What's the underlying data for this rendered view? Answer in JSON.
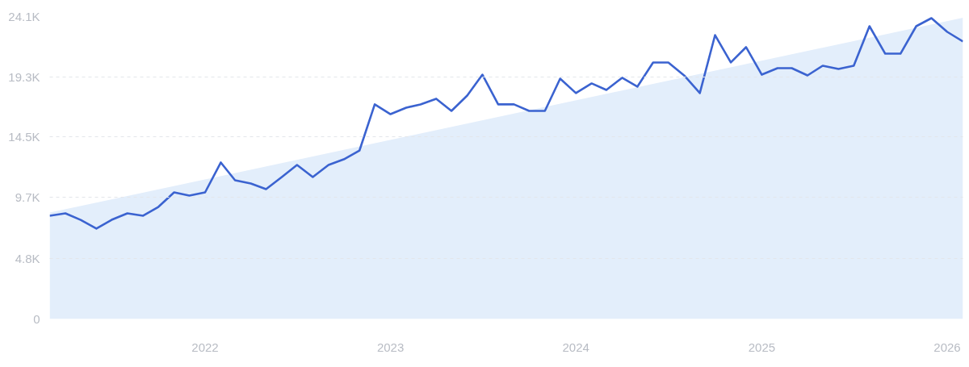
{
  "chart_data": {
    "type": "line",
    "xlim": [
      "2021-03",
      "2026-02"
    ],
    "xticks": [
      "2022",
      "2023",
      "2024",
      "2025",
      "2026"
    ],
    "ylim": [
      0,
      24100
    ],
    "yticks": [
      0,
      {
        "value": 4800,
        "label": "4.8K"
      },
      {
        "value": 9700,
        "label": "9.7K"
      },
      {
        "value": 14500,
        "label": "14.5K"
      },
      {
        "value": 19300,
        "label": "19.3K"
      },
      {
        "value": 24100,
        "label": "24.1K"
      }
    ],
    "grid": "y",
    "line_style": "solid",
    "series": [
      {
        "type": "area",
        "color": "#e3eefb",
        "x": [
          "2021-03",
          "2026-02"
        ],
        "values": [
          8480,
          24000
        ]
      },
      {
        "color": "#3b63d0",
        "x": [
          "2021-03",
          "2021-04",
          "2021-05",
          "2021-06",
          "2021-07",
          "2021-08",
          "2021-09",
          "2021-10",
          "2021-11",
          "2021-12",
          "2022-01",
          "2022-02",
          "2022-03",
          "2022-04",
          "2022-05",
          "2022-06",
          "2022-07",
          "2022-08",
          "2022-09",
          "2022-10",
          "2022-11",
          "2022-12",
          "2023-01",
          "2023-02",
          "2023-03",
          "2023-04",
          "2023-05",
          "2023-06",
          "2023-07",
          "2023-08",
          "2023-09",
          "2023-10",
          "2023-11",
          "2023-12",
          "2024-01",
          "2024-02",
          "2024-03",
          "2024-04",
          "2024-05",
          "2024-06",
          "2024-07",
          "2024-08",
          "2024-09",
          "2024-10",
          "2024-11",
          "2024-12",
          "2025-01",
          "2025-02",
          "2025-03",
          "2025-04",
          "2025-05",
          "2025-06",
          "2025-07",
          "2025-08",
          "2025-09",
          "2025-10",
          "2025-11",
          "2025-12",
          "2026-01",
          "2026-02"
        ],
        "values": [
          8230,
          8420,
          7900,
          7200,
          7900,
          8420,
          8230,
          8930,
          10090,
          9830,
          10090,
          12470,
          11050,
          10800,
          10350,
          11310,
          12270,
          11310,
          12270,
          12720,
          13430,
          17100,
          16320,
          16840,
          17100,
          17550,
          16580,
          17800,
          19470,
          17100,
          17100,
          16580,
          16580,
          19150,
          18000,
          18770,
          18250,
          19220,
          18510,
          20440,
          20440,
          19410,
          18000,
          22620,
          20440,
          21660,
          19470,
          19990,
          19990,
          19410,
          20180,
          19920,
          20180,
          23330,
          21140,
          21140,
          23330,
          23970,
          22880,
          22110
        ]
      }
    ]
  }
}
